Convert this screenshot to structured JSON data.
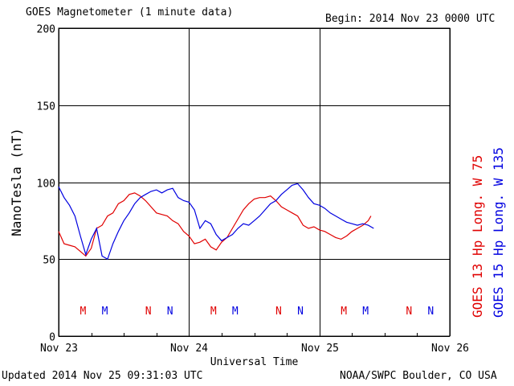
{
  "header": {
    "title": "GOES Magnetometer (1 minute data)",
    "begin": "Begin:  2014 Nov 23 0000 UTC"
  },
  "footer": {
    "updated": "Updated 2014 Nov 25 09:31:03 UTC",
    "source": "NOAA/SWPC Boulder, CO USA"
  },
  "chart_data": {
    "type": "line",
    "title": "GOES Magnetometer (1 minute data)",
    "xlabel": "Universal Time",
    "ylabel": "NanoTesla (nT)",
    "xlim": [
      0,
      72
    ],
    "ylim": [
      0,
      200
    ],
    "x_unit": "hours since 2014 Nov 23 0000 UTC",
    "yticks": [
      0,
      50,
      100,
      150,
      200
    ],
    "xticks": [
      {
        "x": 0,
        "label": "Nov 23"
      },
      {
        "x": 24,
        "label": "Nov 24"
      },
      {
        "x": 48,
        "label": "Nov 25"
      },
      {
        "x": 72,
        "label": "Nov 26"
      }
    ],
    "grid": true,
    "series": [
      {
        "name": "GOES 13 Hp  Long. W 75",
        "color": "#e00000",
        "x": [
          0,
          1,
          2,
          3,
          4,
          5,
          6,
          7,
          8,
          9,
          10,
          11,
          12,
          13,
          14,
          15,
          16,
          17,
          18,
          19,
          20,
          21,
          22,
          23,
          24,
          25,
          26,
          27,
          28,
          29,
          30,
          31,
          32,
          33,
          34,
          35,
          36,
          37,
          38,
          39,
          40,
          41,
          42,
          43,
          44,
          45,
          46,
          47,
          48,
          49,
          50,
          51,
          52,
          53,
          54,
          55,
          56,
          57,
          57.5
        ],
        "values": [
          68,
          60,
          59,
          58,
          55,
          52,
          57,
          70,
          72,
          78,
          80,
          86,
          88,
          92,
          93,
          91,
          88,
          84,
          80,
          79,
          78,
          75,
          73,
          68,
          65,
          60,
          61,
          63,
          58,
          56,
          61,
          64,
          70,
          76,
          82,
          86,
          89,
          90,
          90,
          91,
          88,
          84,
          82,
          80,
          78,
          72,
          70,
          71,
          69,
          68,
          66,
          64,
          63,
          65,
          68,
          70,
          72,
          75,
          78
        ]
      },
      {
        "name": "GOES 15 Hp  Long. W 135",
        "color": "#0000e0",
        "x": [
          0,
          1,
          2,
          3,
          4,
          5,
          6,
          7,
          8,
          9,
          10,
          11,
          12,
          13,
          14,
          15,
          16,
          17,
          18,
          19,
          20,
          21,
          22,
          23,
          24,
          25,
          26,
          27,
          28,
          29,
          30,
          31,
          32,
          33,
          34,
          35,
          36,
          37,
          38,
          39,
          40,
          41,
          42,
          43,
          44,
          45,
          46,
          47,
          48,
          49,
          50,
          51,
          52,
          53,
          54,
          55,
          56,
          57,
          58
        ],
        "values": [
          97,
          90,
          85,
          78,
          65,
          53,
          63,
          70,
          52,
          50,
          60,
          68,
          75,
          80,
          86,
          90,
          92,
          94,
          95,
          93,
          95,
          96,
          90,
          88,
          87,
          82,
          70,
          75,
          73,
          66,
          62,
          64,
          66,
          70,
          73,
          72,
          75,
          78,
          82,
          86,
          88,
          92,
          95,
          98,
          99,
          95,
          90,
          86,
          85,
          83,
          80,
          78,
          76,
          74,
          73,
          72,
          73,
          72,
          70
        ]
      }
    ],
    "markers": [
      {
        "x": 4.5,
        "label": "M",
        "series": 0
      },
      {
        "x": 8.5,
        "label": "M",
        "series": 1
      },
      {
        "x": 16.5,
        "label": "N",
        "series": 0
      },
      {
        "x": 20.5,
        "label": "N",
        "series": 1
      },
      {
        "x": 28.5,
        "label": "M",
        "series": 0
      },
      {
        "x": 32.5,
        "label": "M",
        "series": 1
      },
      {
        "x": 40.5,
        "label": "N",
        "series": 0
      },
      {
        "x": 44.5,
        "label": "N",
        "series": 1
      },
      {
        "x": 52.5,
        "label": "M",
        "series": 0
      },
      {
        "x": 56.5,
        "label": "M",
        "series": 1
      },
      {
        "x": 64.5,
        "label": "N",
        "series": 0
      },
      {
        "x": 68.5,
        "label": "N",
        "series": 1
      }
    ]
  }
}
